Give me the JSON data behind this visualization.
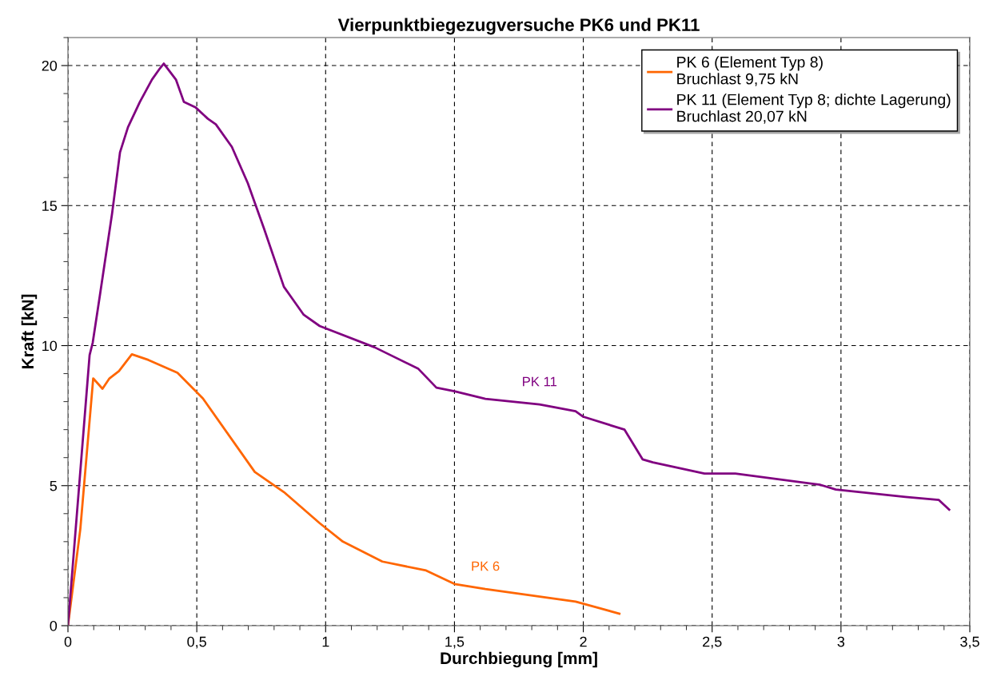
{
  "chart_data": {
    "type": "line",
    "title": "Vierpunktbiegezugversuche PK6 und PK11",
    "xlabel": "Durchbiegung [mm]",
    "ylabel": "Kraft [kN]",
    "series": [
      {
        "name": "PK 6 (Element Typ 8)\nBruchlast 9,75 kN",
        "color": "#ff6600",
        "x": [
          0,
          0.048,
          0.098,
          0.134,
          0.161,
          0.198,
          0.248,
          0.312,
          0.425,
          0.524,
          0.725,
          0.838,
          0.977,
          1.067,
          1.22,
          1.39,
          1.5,
          1.62,
          1.97,
          2.14
        ],
        "values": [
          0,
          3.45,
          8.83,
          8.46,
          8.83,
          9.09,
          9.69,
          9.49,
          9.03,
          8.11,
          5.49,
          4.77,
          3.66,
          3.0,
          2.29,
          1.97,
          1.49,
          1.31,
          0.86,
          0.43
        ]
      },
      {
        "name": "PK 11 (Element Typ 8; dichte Lagerung)\nBruchlast 20,07 kN",
        "color": "#800080",
        "x": [
          0,
          0.084,
          0.096,
          0.124,
          0.171,
          0.202,
          0.233,
          0.279,
          0.326,
          0.357,
          0.372,
          0.419,
          0.45,
          0.496,
          0.543,
          0.574,
          0.636,
          0.698,
          0.76,
          0.838,
          0.869,
          0.915,
          0.977,
          1.19,
          1.36,
          1.43,
          1.5,
          1.62,
          1.83,
          1.97,
          2.0,
          2.16,
          2.23,
          2.27,
          2.47,
          2.59,
          2.92,
          2.98,
          3.25,
          3.38,
          3.42
        ],
        "values": [
          0,
          9.66,
          10.1,
          11.8,
          14.7,
          16.9,
          17.8,
          18.7,
          19.5,
          19.9,
          20.07,
          19.5,
          18.7,
          18.5,
          18.1,
          17.9,
          17.1,
          15.8,
          14.2,
          12.1,
          11.7,
          11.1,
          10.7,
          9.94,
          9.17,
          8.5,
          8.37,
          8.1,
          7.9,
          7.66,
          7.46,
          7.0,
          5.94,
          5.83,
          5.43,
          5.43,
          5.03,
          4.86,
          4.6,
          4.49,
          4.14
        ]
      }
    ],
    "annotations": [
      "PK 6",
      "PK 11"
    ],
    "xlim": [
      0,
      3.5
    ],
    "ylim": [
      0,
      21
    ],
    "xticks": [
      0,
      {
        "value": 0.1,
        "label": null
      },
      {
        "value": 0.2,
        "label": null
      },
      {
        "value": 0.3,
        "label": null
      },
      {
        "value": 0.4,
        "label": null
      },
      {
        "value": 0.5,
        "label": "0,5"
      },
      {
        "value": 0.6,
        "label": null
      },
      {
        "value": 0.7,
        "label": null
      },
      {
        "value": 0.8,
        "label": null
      },
      {
        "value": 0.9,
        "label": null
      },
      1,
      {
        "value": 1.1,
        "label": null
      },
      {
        "value": 1.2,
        "label": null
      },
      {
        "value": 1.3,
        "label": null
      },
      {
        "value": 1.4,
        "label": null
      },
      {
        "value": 1.5,
        "label": "1,5"
      },
      {
        "value": 1.6,
        "label": null
      },
      {
        "value": 1.7,
        "label": null
      },
      {
        "value": 1.8,
        "label": null
      },
      {
        "value": 1.9,
        "label": null
      },
      2,
      {
        "value": 2.1,
        "label": null
      },
      {
        "value": 2.2,
        "label": null
      },
      {
        "value": 2.3,
        "label": null
      },
      {
        "value": 2.4,
        "label": null
      },
      {
        "value": 2.5,
        "label": "2,5"
      },
      {
        "value": 2.6,
        "label": null
      },
      {
        "value": 2.7,
        "label": null
      },
      {
        "value": 2.8,
        "label": null
      },
      {
        "value": 2.9,
        "label": null
      },
      3,
      {
        "value": 3.1,
        "label": null
      },
      {
        "value": 3.2,
        "label": null
      },
      {
        "value": 3.3,
        "label": null
      },
      {
        "value": 3.4,
        "label": null
      },
      {
        "value": 3.5,
        "label": "3,5"
      }
    ],
    "yticks": [
      0,
      {
        "value": 1,
        "label": null
      },
      {
        "value": 2,
        "label": null
      },
      {
        "value": 3,
        "label": null
      },
      {
        "value": 4,
        "label": null
      },
      5,
      {
        "value": 6,
        "label": null
      },
      {
        "value": 7,
        "label": null
      },
      {
        "value": 8,
        "label": null
      },
      {
        "value": 9,
        "label": null
      },
      10,
      {
        "value": 11,
        "label": null
      },
      {
        "value": 12,
        "label": null
      },
      {
        "value": 13,
        "label": null
      },
      {
        "value": 14,
        "label": null
      },
      15,
      {
        "value": 16,
        "label": null
      },
      {
        "value": 17,
        "label": null
      },
      {
        "value": 18,
        "label": null
      },
      {
        "value": 19,
        "label": null
      },
      20,
      {
        "value": 21,
        "label": null
      }
    ],
    "grid": true,
    "legend": "top right",
    "marker": "none",
    "line_style": "solid"
  }
}
